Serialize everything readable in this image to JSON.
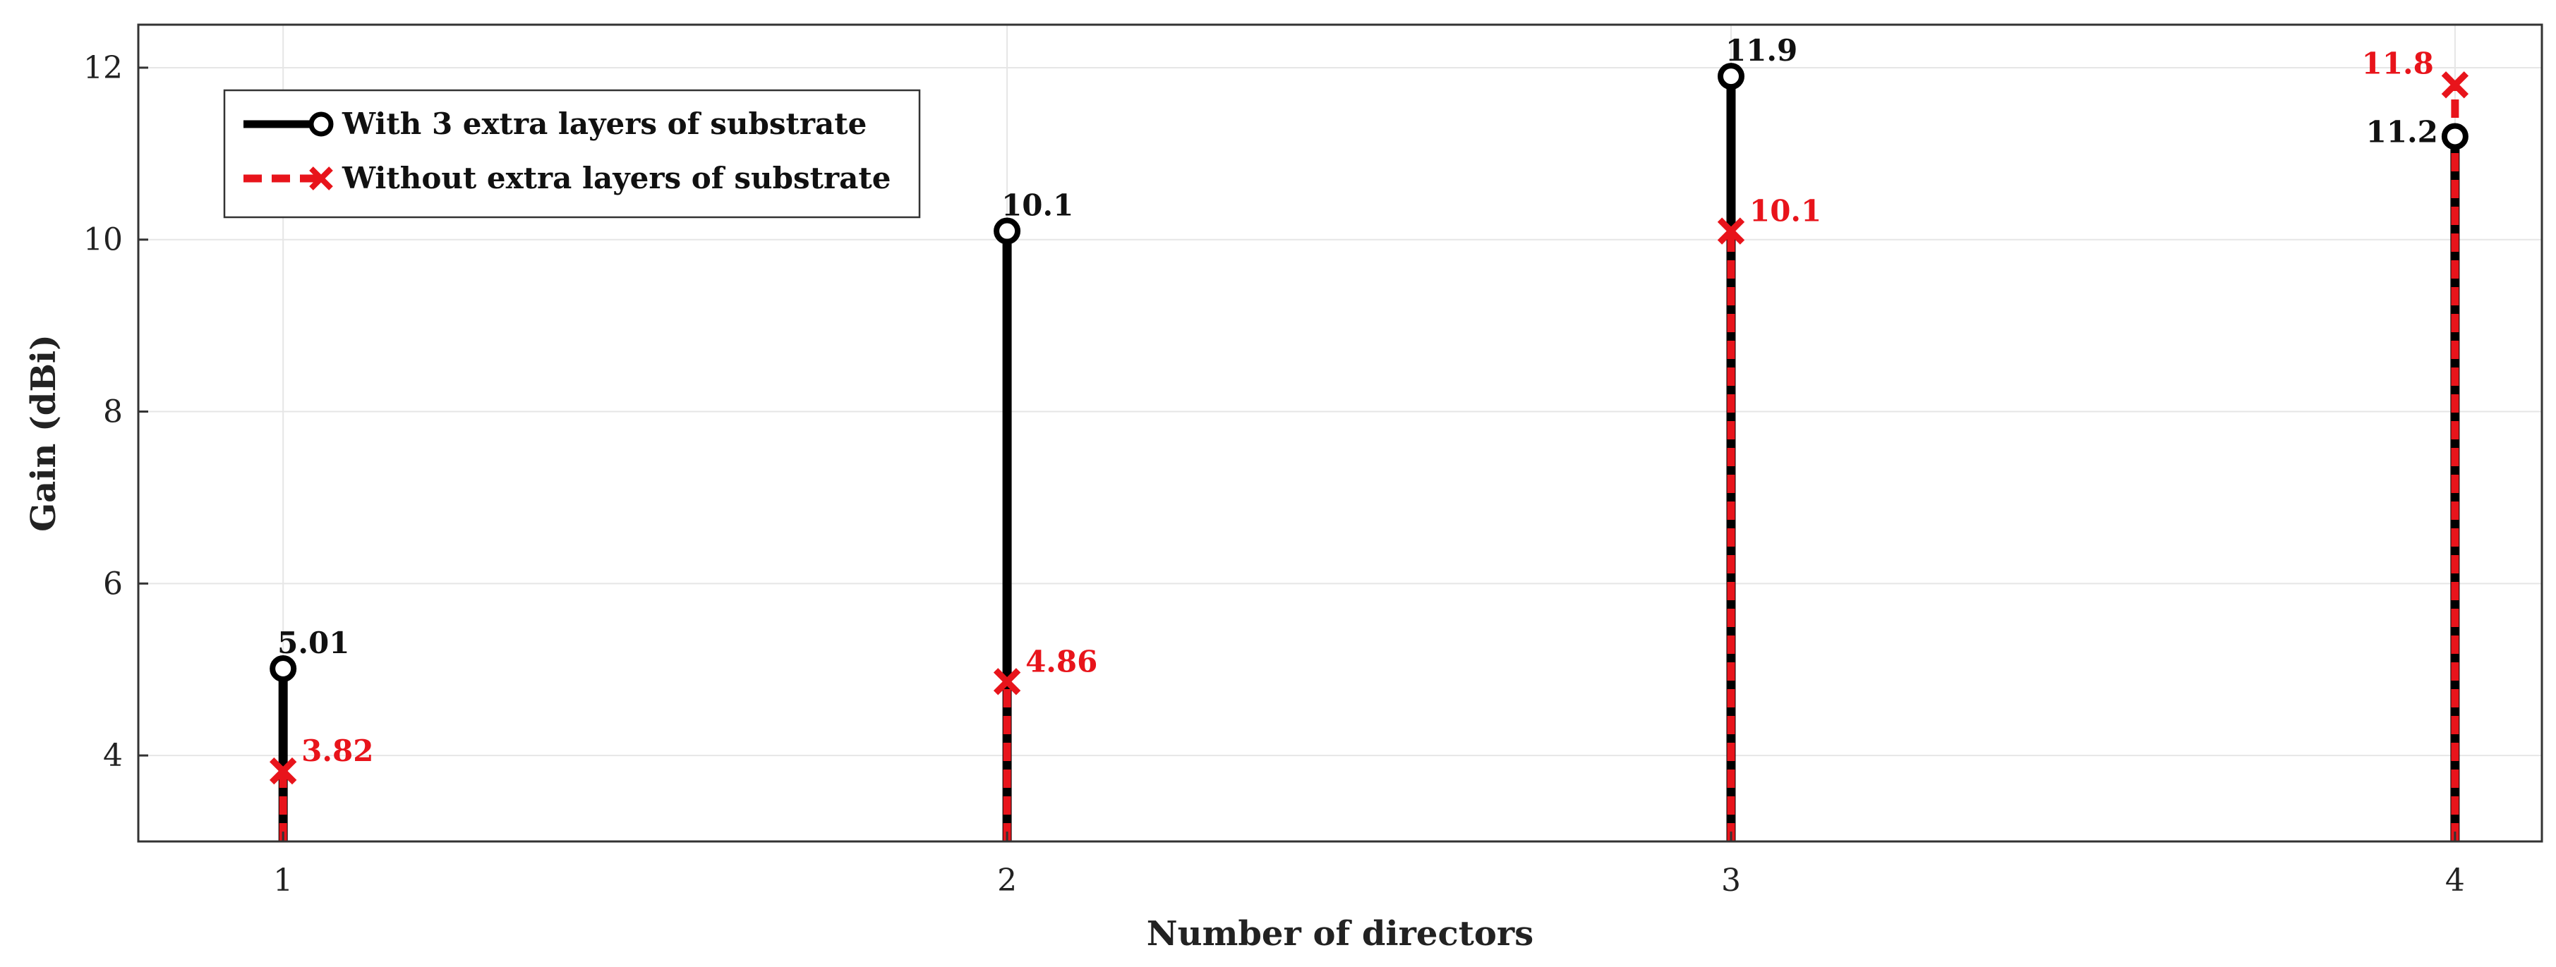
{
  "chart_data": {
    "type": "stem",
    "xlabel": "Number of directors",
    "ylabel": "Gain (dBi)",
    "x": [
      1,
      2,
      3,
      4
    ],
    "xticks": [
      "1",
      "2",
      "3",
      "4"
    ],
    "yticks": [
      "4",
      "6",
      "8",
      "10",
      "12"
    ],
    "ylim": [
      3,
      12.5
    ],
    "xlim": [
      0.8,
      4.12
    ],
    "grid": true,
    "legend_position": "top-left",
    "series": [
      {
        "name": "With 3 extra layers of substrate",
        "values": [
          5.01,
          10.1,
          11.9,
          11.2
        ],
        "labels": [
          "5.01",
          "10.1",
          "11.9",
          "11.2"
        ],
        "color": "#000000",
        "marker": "circle",
        "line_style": "solid"
      },
      {
        "name": "Without extra layers of substrate",
        "values": [
          3.82,
          4.86,
          10.1,
          11.8
        ],
        "labels": [
          "3.82",
          "4.86",
          "10.1",
          "11.8"
        ],
        "color": "#e8141b",
        "marker": "x",
        "line_style": "dashed"
      }
    ]
  }
}
